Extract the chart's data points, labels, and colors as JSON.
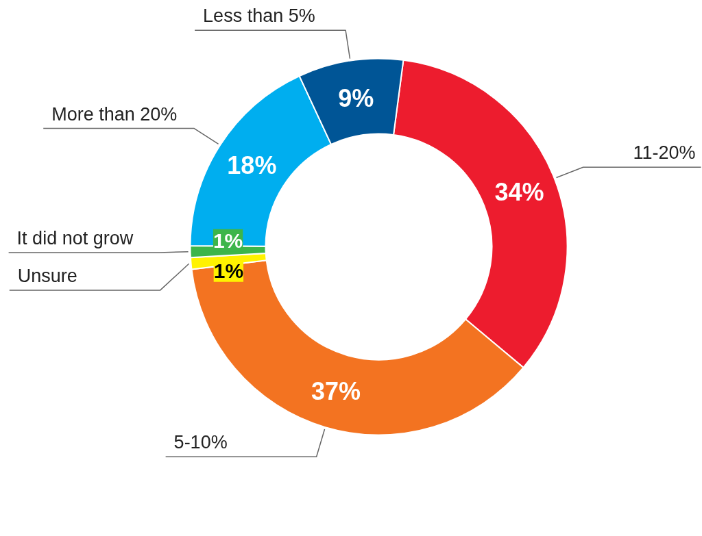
{
  "chart_data": {
    "type": "donut",
    "categories": [
      "11-20%",
      "5-10%",
      "Unsure",
      "It did not grow",
      "More than 20%",
      "Less than 5%"
    ],
    "values": [
      34,
      37,
      1,
      1,
      18,
      9
    ],
    "colors": [
      "#ed1c2e",
      "#f37321",
      "#fff200",
      "#3db54a",
      "#00aeef",
      "#005596"
    ],
    "value_labels": [
      "34%",
      "37%",
      "1%",
      "1%",
      "18%",
      "9%"
    ]
  }
}
